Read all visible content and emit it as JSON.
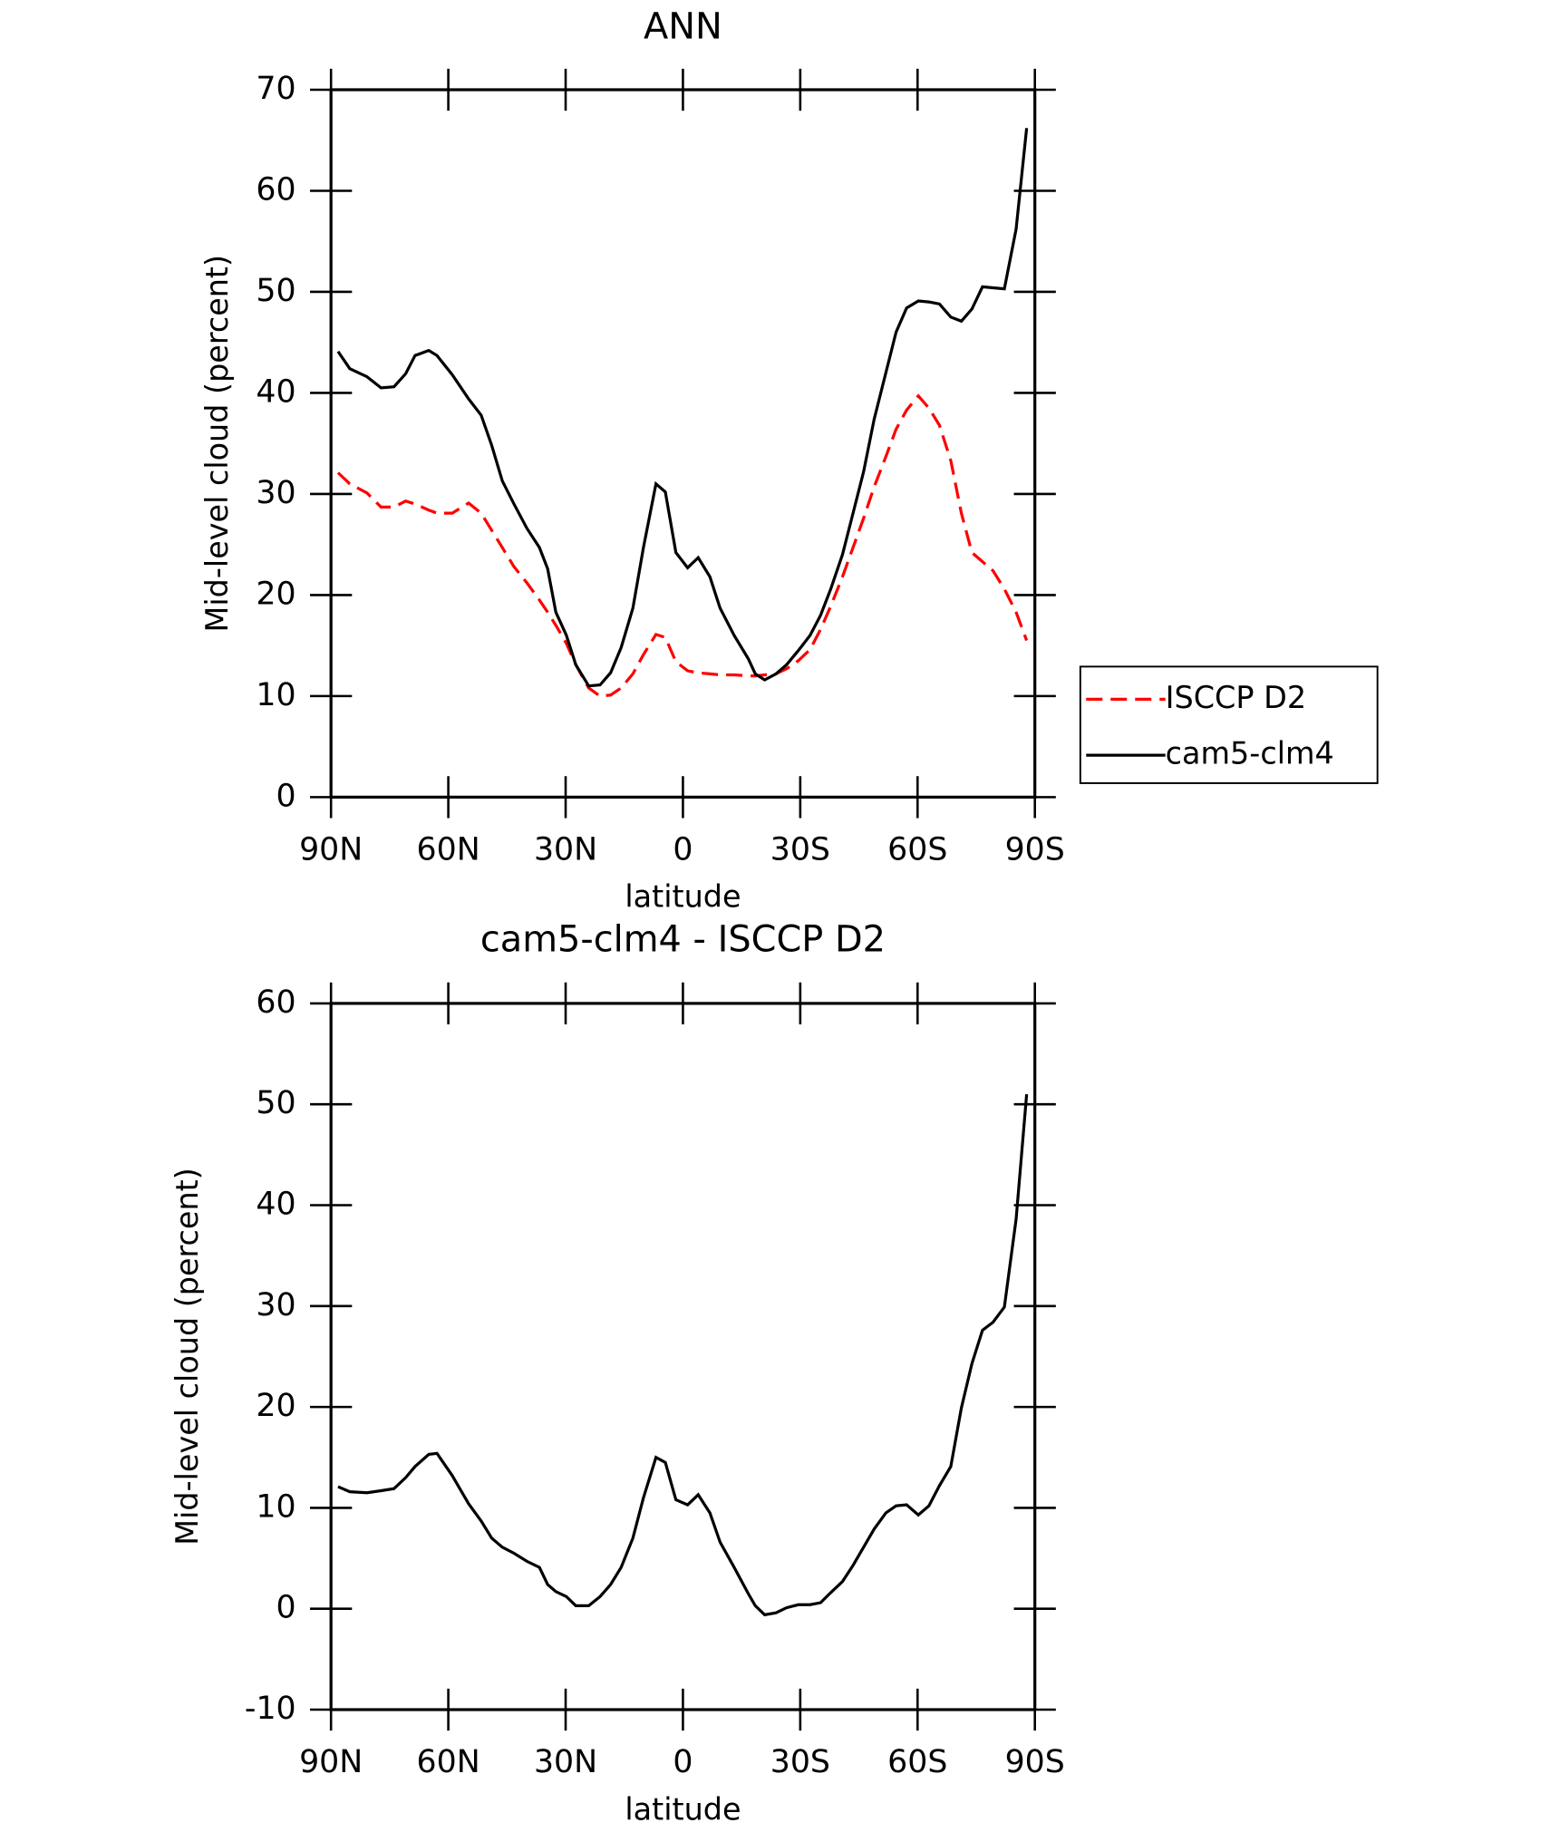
{
  "chart_data": [
    {
      "type": "line",
      "title": "ANN",
      "xlabel": "latitude",
      "ylabel": "Mid-level cloud (percent)",
      "x": [
        88.2,
        85.2,
        80.8,
        77.2,
        73.9,
        70.9,
        68.5,
        65.0,
        62.9,
        59.0,
        54.8,
        51.6,
        48.9,
        46.2,
        43.2,
        39.9,
        36.7,
        34.6,
        32.5,
        29.8,
        27.4,
        24.1,
        21.2,
        18.5,
        15.8,
        12.8,
        10.1,
        6.9,
        4.5,
        1.8,
        -1.2,
        -3.9,
        -6.9,
        -9.5,
        -13.1,
        -16.7,
        -18.5,
        -20.9,
        -23.8,
        -26.5,
        -29.5,
        -32.5,
        -35.2,
        -37.8,
        -40.8,
        -43.5,
        -46.2,
        -48.9,
        -51.9,
        -54.5,
        -57.2,
        -60.2,
        -62.9,
        -65.6,
        -68.5,
        -71.2,
        -73.9,
        -76.6,
        -79.3,
        -82.2,
        -85.2,
        -87.9
      ],
      "series": [
        {
          "name": "ISCCP D2",
          "color": "#ff0000",
          "line_style": "dashed",
          "values": [
            32.1,
            31.0,
            30.1,
            28.7,
            28.7,
            29.3,
            29.0,
            28.4,
            28.1,
            28.1,
            29.1,
            28.1,
            26.4,
            24.7,
            22.8,
            21.2,
            19.5,
            18.3,
            17.0,
            15.2,
            13.1,
            10.8,
            10.0,
            10.1,
            10.8,
            12.2,
            14.1,
            16.1,
            15.8,
            13.4,
            12.5,
            12.3,
            12.2,
            12.1,
            12.1,
            12.0,
            12.0,
            12.1,
            12.2,
            12.7,
            13.5,
            14.6,
            16.6,
            18.9,
            21.8,
            24.7,
            27.6,
            30.7,
            33.7,
            36.4,
            38.3,
            39.7,
            38.5,
            36.8,
            33.3,
            28.1,
            24.2,
            23.3,
            22.4,
            20.6,
            18.3,
            15.5
          ]
        },
        {
          "name": "cam5-clm4",
          "color": "#000000",
          "line_style": "solid",
          "values": [
            44.1,
            42.4,
            41.6,
            40.5,
            40.6,
            41.9,
            43.7,
            44.2,
            43.7,
            41.8,
            39.4,
            37.8,
            34.8,
            31.3,
            29.0,
            26.6,
            24.7,
            22.6,
            18.3,
            16.0,
            13.1,
            11.0,
            11.1,
            12.3,
            14.8,
            18.7,
            24.7,
            31.0,
            30.2,
            24.2,
            22.7,
            23.7,
            21.8,
            18.7,
            16.0,
            13.7,
            12.2,
            11.6,
            12.2,
            13.1,
            14.5,
            16.0,
            18.0,
            20.6,
            24.0,
            28.1,
            32.2,
            37.4,
            42.0,
            46.0,
            48.4,
            49.1,
            49.0,
            48.8,
            47.5,
            47.1,
            48.3,
            50.5,
            50.4,
            50.3,
            56.2,
            66.2
          ]
        }
      ],
      "xlim": [
        90,
        -90
      ],
      "xticks": [
        {
          "value": 90,
          "label": "90N"
        },
        {
          "value": 60,
          "label": "60N"
        },
        {
          "value": 30,
          "label": "30N"
        },
        0,
        {
          "value": -30,
          "label": "30S"
        },
        {
          "value": -60,
          "label": "60S"
        },
        {
          "value": -90,
          "label": "90S"
        }
      ],
      "ylim": [
        0,
        70
      ],
      "yticks": [
        0,
        10,
        20,
        30,
        40,
        50,
        60,
        70
      ],
      "legend": "right"
    },
    {
      "type": "line",
      "title": "cam5-clm4 - ISCCP D2",
      "xlabel": "latitude",
      "ylabel": "Mid-level cloud (percent)",
      "x": [
        88.2,
        85.2,
        80.8,
        77.2,
        73.9,
        70.9,
        68.5,
        65.0,
        62.9,
        59.0,
        54.8,
        51.6,
        48.9,
        46.2,
        43.2,
        39.9,
        36.7,
        34.6,
        32.5,
        29.8,
        27.4,
        24.1,
        21.2,
        18.5,
        15.8,
        12.8,
        10.1,
        6.9,
        4.5,
        1.8,
        -1.2,
        -3.9,
        -6.9,
        -9.5,
        -13.1,
        -16.7,
        -18.5,
        -20.9,
        -23.8,
        -26.5,
        -29.5,
        -32.5,
        -35.2,
        -37.8,
        -40.8,
        -43.5,
        -46.2,
        -48.9,
        -51.9,
        -54.5,
        -57.2,
        -60.2,
        -62.9,
        -65.6,
        -68.5,
        -71.2,
        -73.9,
        -76.6,
        -79.3,
        -82.2,
        -85.2,
        -87.9
      ],
      "series": [
        {
          "color": "#000000",
          "line_style": "solid",
          "values": [
            12.1,
            11.6,
            11.5,
            11.7,
            11.9,
            13.0,
            14.1,
            15.3,
            15.4,
            13.2,
            10.4,
            8.7,
            7.0,
            6.1,
            5.5,
            4.7,
            4.1,
            2.4,
            1.7,
            1.2,
            0.3,
            0.3,
            1.2,
            2.4,
            4.1,
            7.0,
            11.0,
            15.0,
            14.5,
            10.8,
            10.3,
            11.3,
            9.5,
            6.6,
            4.1,
            1.5,
            0.3,
            -0.6,
            -0.4,
            0.1,
            0.4,
            0.4,
            0.6,
            1.6,
            2.7,
            4.3,
            6.1,
            7.9,
            9.5,
            10.2,
            10.3,
            9.3,
            10.2,
            12.2,
            14.1,
            19.9,
            24.3,
            27.6,
            28.4,
            29.9,
            38.6,
            51.0
          ]
        }
      ],
      "xlim": [
        90,
        -90
      ],
      "xticks": [
        {
          "value": 90,
          "label": "90N"
        },
        {
          "value": 60,
          "label": "60N"
        },
        {
          "value": 30,
          "label": "30N"
        },
        0,
        {
          "value": -30,
          "label": "30S"
        },
        {
          "value": -60,
          "label": "60S"
        },
        {
          "value": -90,
          "label": "90S"
        }
      ],
      "ylim": [
        -10,
        60
      ],
      "yticks": [
        -10,
        0,
        10,
        20,
        30,
        40,
        50,
        60
      ]
    }
  ]
}
